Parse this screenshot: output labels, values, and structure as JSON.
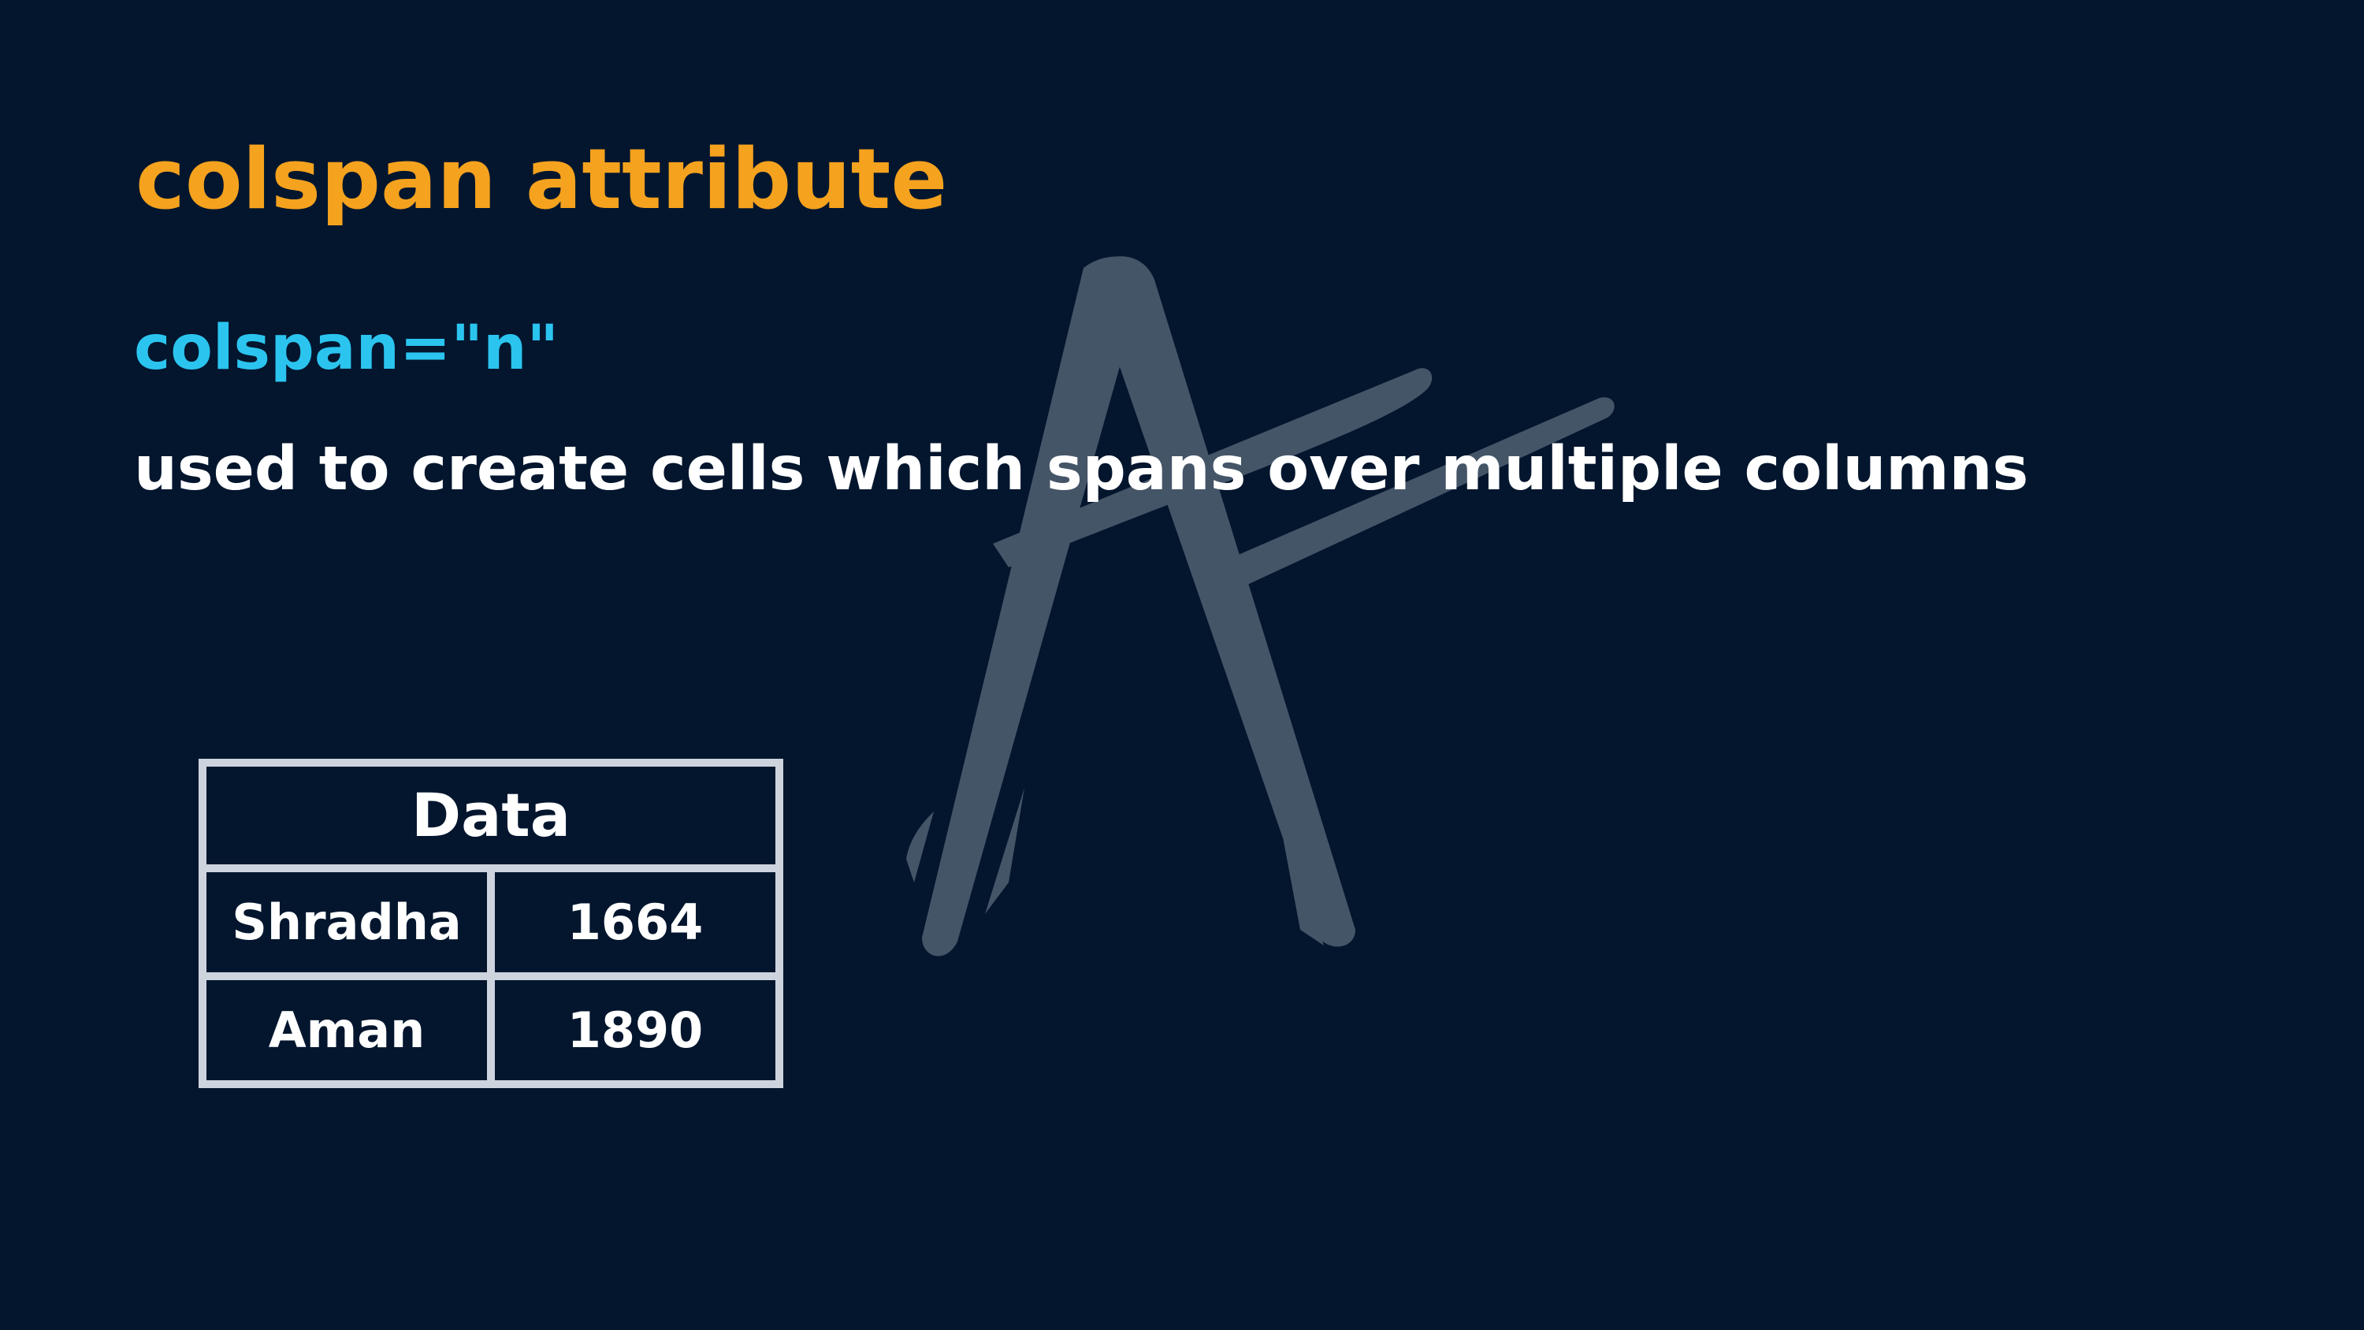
{
  "slide": {
    "title": "colspan attribute",
    "syntax": "colspan=\"n\"",
    "description": "used to create cells which spans over multiple columns"
  },
  "demo_table": {
    "header": "Data",
    "rows": [
      [
        "Shradha",
        "1664"
      ],
      [
        "Aman",
        "1890"
      ]
    ]
  },
  "colors": {
    "background": "#03162e",
    "title": "#f5a21e",
    "syntax": "#2bc4ef",
    "text": "#ffffff",
    "table_border": "#cdd4de",
    "watermark": "#455568"
  }
}
